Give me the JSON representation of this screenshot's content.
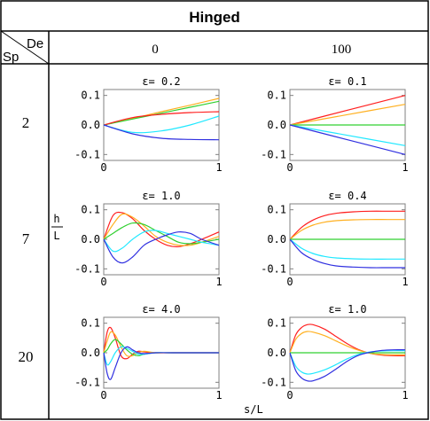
{
  "table": {
    "title": "Hinged",
    "corner_top": "De",
    "corner_bottom": "Sp",
    "column_headers": [
      "0",
      "100"
    ],
    "row_headers": [
      "2",
      "7",
      "20"
    ],
    "y_axis_label": {
      "num": "h",
      "den": "L"
    },
    "x_axis_label": "s/L"
  },
  "colors": {
    "red": "#ff2020",
    "orange": "#ffb020",
    "green": "#30d030",
    "cyan": "#20e8ff",
    "blue": "#3030e0",
    "frame": "#000000",
    "axis": "#808080"
  },
  "chart_data": [
    {
      "type": "line",
      "row": 0,
      "col": 0,
      "title": "ε= 0.2",
      "xlim": [
        0,
        1
      ],
      "ylim": [
        -0.12,
        0.12
      ],
      "xticks": [
        "0",
        "1"
      ],
      "yticks": [
        "0.1",
        "0.0",
        "-0.1"
      ],
      "x": [
        0,
        0.25,
        0.5,
        0.75,
        1.0
      ],
      "series": [
        {
          "color": "orange",
          "values": [
            0,
            0.022,
            0.045,
            0.067,
            0.09
          ]
        },
        {
          "color": "green",
          "values": [
            0,
            0.02,
            0.04,
            0.06,
            0.08
          ]
        },
        {
          "color": "red",
          "values": [
            0,
            0.025,
            0.036,
            0.042,
            0.045
          ]
        },
        {
          "color": "cyan",
          "values": [
            0,
            -0.025,
            -0.02,
            0.0,
            0.03
          ]
        },
        {
          "color": "blue",
          "values": [
            0,
            -0.03,
            -0.045,
            -0.049,
            -0.05
          ]
        }
      ]
    },
    {
      "type": "line",
      "row": 0,
      "col": 1,
      "title": "ε= 0.1",
      "xlim": [
        0,
        1
      ],
      "ylim": [
        -0.12,
        0.12
      ],
      "xticks": [
        "0",
        "1"
      ],
      "yticks": [
        "0.1",
        "0.0",
        "-0.1"
      ],
      "x": [
        0,
        0.5,
        1.0
      ],
      "series": [
        {
          "color": "red",
          "values": [
            0,
            0.05,
            0.1
          ]
        },
        {
          "color": "orange",
          "values": [
            0,
            0.035,
            0.07
          ]
        },
        {
          "color": "green",
          "values": [
            0,
            0,
            0
          ]
        },
        {
          "color": "cyan",
          "values": [
            0,
            -0.035,
            -0.07
          ]
        },
        {
          "color": "blue",
          "values": [
            0,
            -0.05,
            -0.1
          ]
        }
      ]
    },
    {
      "type": "line",
      "row": 1,
      "col": 0,
      "title": "ε= 1.0",
      "xlim": [
        0,
        1
      ],
      "ylim": [
        -0.12,
        0.12
      ],
      "xticks": [
        "0",
        "1"
      ],
      "yticks": [
        "0.1",
        "0.0",
        "-0.1"
      ],
      "x": [
        0,
        0.08,
        0.16,
        0.25,
        0.35,
        0.45,
        0.55,
        0.65,
        0.75,
        0.85,
        1.0
      ],
      "series": [
        {
          "color": "red",
          "values": [
            0,
            0.08,
            0.09,
            0.07,
            0.03,
            0.0,
            -0.02,
            -0.025,
            -0.015,
            0.0,
            0.025
          ]
        },
        {
          "color": "orange",
          "values": [
            0,
            0.05,
            0.085,
            0.075,
            0.045,
            0.01,
            -0.01,
            -0.02,
            -0.02,
            -0.01,
            0.01
          ]
        },
        {
          "color": "green",
          "values": [
            0,
            0.02,
            0.04,
            0.055,
            0.05,
            0.03,
            0.01,
            -0.01,
            -0.015,
            -0.01,
            0.0
          ]
        },
        {
          "color": "cyan",
          "values": [
            0,
            -0.04,
            -0.03,
            0.0,
            0.025,
            0.03,
            0.02,
            0.01,
            0.0,
            -0.01,
            -0.02
          ]
        },
        {
          "color": "blue",
          "values": [
            0,
            -0.06,
            -0.08,
            -0.06,
            -0.02,
            0.0,
            0.015,
            0.025,
            0.02,
            0.0,
            -0.02
          ]
        }
      ]
    },
    {
      "type": "line",
      "row": 1,
      "col": 1,
      "title": "ε= 0.4",
      "xlim": [
        0,
        1
      ],
      "ylim": [
        -0.12,
        0.12
      ],
      "xticks": [
        "0",
        "1"
      ],
      "yticks": [
        "0.1",
        "0.0",
        "-0.1"
      ],
      "x": [
        0,
        0.1,
        0.2,
        0.3,
        0.4,
        0.55,
        0.7,
        0.85,
        1.0
      ],
      "series": [
        {
          "color": "red",
          "values": [
            0,
            0.04,
            0.065,
            0.08,
            0.088,
            0.093,
            0.095,
            0.095,
            0.095
          ]
        },
        {
          "color": "orange",
          "values": [
            0,
            0.03,
            0.048,
            0.058,
            0.063,
            0.066,
            0.067,
            0.067,
            0.067
          ]
        },
        {
          "color": "green",
          "values": [
            0,
            0,
            0,
            0,
            0,
            0,
            0,
            0,
            0
          ]
        },
        {
          "color": "cyan",
          "values": [
            0,
            -0.03,
            -0.048,
            -0.058,
            -0.063,
            -0.066,
            -0.067,
            -0.067,
            -0.067
          ]
        },
        {
          "color": "blue",
          "values": [
            0,
            -0.045,
            -0.068,
            -0.082,
            -0.09,
            -0.094,
            -0.096,
            -0.096,
            -0.096
          ]
        }
      ]
    },
    {
      "type": "line",
      "row": 2,
      "col": 0,
      "title": "ε= 4.0",
      "xlim": [
        0,
        1
      ],
      "ylim": [
        -0.12,
        0.12
      ],
      "xticks": [
        "0",
        "1"
      ],
      "yticks": [
        "0.1",
        "0.0",
        "-0.1"
      ],
      "x": [
        0,
        0.03,
        0.06,
        0.1,
        0.15,
        0.2,
        0.25,
        0.3,
        0.35,
        0.45,
        0.6,
        1.0
      ],
      "series": [
        {
          "color": "red",
          "values": [
            0,
            0.07,
            0.085,
            0.05,
            -0.01,
            -0.02,
            -0.005,
            0.005,
            0.003,
            0,
            0,
            0
          ]
        },
        {
          "color": "orange",
          "values": [
            0,
            0.04,
            0.07,
            0.06,
            0.02,
            -0.01,
            -0.01,
            0.0,
            0.005,
            0,
            0,
            0
          ]
        },
        {
          "color": "green",
          "values": [
            0,
            0.01,
            0.03,
            0.045,
            0.03,
            0.01,
            -0.005,
            -0.01,
            -0.005,
            0,
            0,
            0
          ]
        },
        {
          "color": "cyan",
          "values": [
            0,
            -0.04,
            -0.03,
            0.0,
            0.02,
            0.015,
            0.005,
            -0.005,
            -0.005,
            0,
            0,
            0
          ]
        },
        {
          "color": "blue",
          "values": [
            0,
            -0.07,
            -0.09,
            -0.05,
            0.0,
            0.02,
            0.01,
            0.0,
            -0.003,
            0,
            0,
            0
          ]
        }
      ]
    },
    {
      "type": "line",
      "row": 2,
      "col": 1,
      "title": "ε= 1.0",
      "xlim": [
        0,
        1
      ],
      "ylim": [
        -0.12,
        0.12
      ],
      "xticks": [
        "0",
        "1"
      ],
      "yticks": [
        "0.1",
        "0.0",
        "-0.1"
      ],
      "x": [
        0,
        0.05,
        0.1,
        0.15,
        0.2,
        0.3,
        0.4,
        0.5,
        0.6,
        0.7,
        0.8,
        0.9,
        1.0
      ],
      "series": [
        {
          "color": "red",
          "values": [
            0,
            0.06,
            0.085,
            0.095,
            0.095,
            0.08,
            0.055,
            0.03,
            0.01,
            -0.002,
            -0.008,
            -0.01,
            -0.01
          ]
        },
        {
          "color": "orange",
          "values": [
            0,
            0.045,
            0.065,
            0.072,
            0.07,
            0.058,
            0.04,
            0.022,
            0.008,
            -0.002,
            -0.006,
            -0.007,
            -0.007
          ]
        },
        {
          "color": "green",
          "values": [
            0,
            0,
            0,
            0,
            0,
            0,
            0,
            0,
            0,
            0,
            0,
            0,
            0
          ]
        },
        {
          "color": "cyan",
          "values": [
            0,
            -0.045,
            -0.065,
            -0.072,
            -0.07,
            -0.058,
            -0.04,
            -0.02,
            -0.005,
            0.003,
            0.006,
            0.007,
            0.007
          ]
        },
        {
          "color": "blue",
          "values": [
            0,
            -0.06,
            -0.085,
            -0.095,
            -0.095,
            -0.08,
            -0.055,
            -0.028,
            -0.008,
            0.002,
            0.008,
            0.01,
            0.01
          ]
        }
      ]
    }
  ]
}
